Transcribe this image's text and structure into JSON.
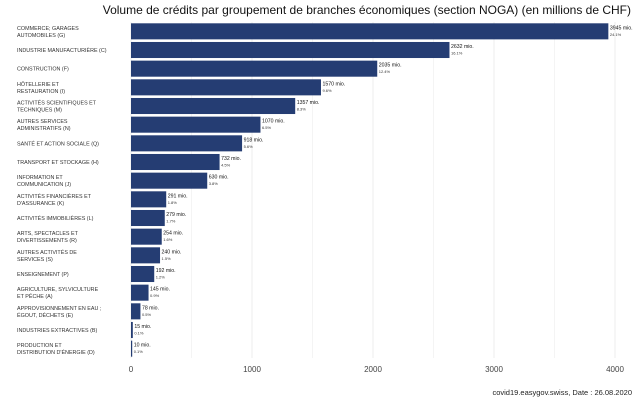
{
  "chart_data": {
    "type": "bar",
    "orientation": "horizontal",
    "title": "Volume de crédits par groupement de branches économiques (section NOGA) (en millions de CHF)",
    "categories": [
      [
        "COMMERCE; GARAGES",
        "AUTOMOBILES (G)"
      ],
      [
        "INDUSTRIE MANUFACTURIÈRE (C)"
      ],
      [
        "CONSTRUCTION (F)"
      ],
      [
        "HÔTELLERIE ET",
        "RESTAURATION (I)"
      ],
      [
        "ACTIVITÉS SCIENTIFIQUES ET",
        "TECHNIQUES (M)"
      ],
      [
        "AUTRES SERVICES",
        "ADMINISTRATIFS (N)"
      ],
      [
        "SANTÉ ET ACTION SOCIALE (Q)"
      ],
      [
        "TRANSPORT ET STOCKAGE (H)"
      ],
      [
        "INFORMATION ET",
        "COMMUNICATION (J)"
      ],
      [
        "ACTIVITÉS FINANCIÈRES ET",
        "D'ASSURANCE (K)"
      ],
      [
        "ACTIVITÉS IMMOBILIÈRES (L)"
      ],
      [
        "ARTS, SPECTACLES ET",
        "DIVERTISSEMENTS (R)"
      ],
      [
        "AUTRES ACTIVITÉS DE",
        "SERVICES (S)"
      ],
      [
        "ENSEIGNEMENT (P)"
      ],
      [
        "AGRICULTURE, SYLVICULTURE",
        "ET PÊCHE (A)"
      ],
      [
        "APPROVISIONNEMENT EN EAU ;",
        "ÉGOUT, DÉCHETS (E)"
      ],
      [
        "INDUSTRIES EXTRACTIVES (B)"
      ],
      [
        "PRODUCTION ET",
        "DISTRIBUTION D'ÉNERGIE (D)"
      ]
    ],
    "values": [
      3945,
      2632,
      2035,
      1570,
      1357,
      1070,
      918,
      732,
      630,
      291,
      279,
      254,
      240,
      192,
      145,
      78,
      15,
      10
    ],
    "value_labels": [
      "3945 mio.",
      "2632 mio.",
      "2035 mio.",
      "1570 mio.",
      "1357 mio.",
      "1070 mio.",
      "918 mio.",
      "732 mio.",
      "630 mio.",
      "291 mio.",
      "279 mio.",
      "254 mio.",
      "240 mio.",
      "192 mio.",
      "145 mio.",
      "78 mio.",
      "15 mio.",
      "10 mio."
    ],
    "percent_labels": [
      "24.1%",
      "16.1%",
      "12.4%",
      "9.6%",
      "8.3%",
      "6.5%",
      "5.6%",
      "4.5%",
      "3.8%",
      "1.8%",
      "1.7%",
      "1.6%",
      "1.5%",
      "1.2%",
      "0.9%",
      "0.5%",
      "0.1%",
      "0.1%"
    ],
    "xlim": [
      0,
      4000
    ],
    "xticks": [
      0,
      1000,
      2000,
      3000,
      4000
    ],
    "grid": true,
    "bar_color": "#253d73",
    "grid_color": "#e8e8e8"
  },
  "footer": {
    "credit": "covid19.easygov.swiss, Date : 26.08.2020"
  }
}
